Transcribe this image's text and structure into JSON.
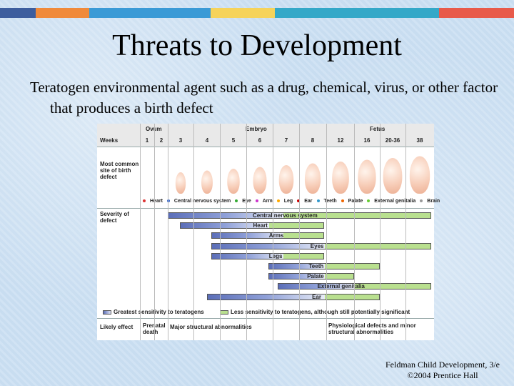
{
  "slide": {
    "title": "Threats to Development",
    "body": "Teratogen environmental agent such as a drug, chemical, virus, or other factor that produces a birth defect",
    "credit_line1": "Feldman Child Development, 3/e",
    "credit_line2": "©2004 Prentice Hall",
    "stripe_colors": [
      "#3d5e9e",
      "#f08a3a",
      "#3a9ad6",
      "#f6d35a",
      "#34a8c8",
      "#e85a4a"
    ]
  },
  "diagram": {
    "periods": [
      "Ovum",
      "Embryo",
      "Fetus"
    ],
    "weeks_label": "Weeks",
    "weeks": [
      "1",
      "2",
      "3",
      "4",
      "5",
      "6",
      "7",
      "8",
      "12",
      "16",
      "20-36",
      "38"
    ],
    "site_label": "Most common site of birth defect",
    "site_legend": [
      {
        "label": "Heart",
        "color": "#d33"
      },
      {
        "label": "Central nervous system",
        "color": "#36c"
      },
      {
        "label": "Eye",
        "color": "#3a3"
      },
      {
        "label": "Arm",
        "color": "#c3c"
      },
      {
        "label": "Leg",
        "color": "#fa0"
      },
      {
        "label": "Ear",
        "color": "#c00"
      },
      {
        "label": "Teeth",
        "color": "#39c"
      },
      {
        "label": "Palate",
        "color": "#e60"
      },
      {
        "label": "External genitalia",
        "color": "#6c3"
      },
      {
        "label": "Brain",
        "color": "#999"
      }
    ],
    "severity_label": "Severity of defect",
    "bars": [
      {
        "label": "Central nervous system",
        "start": 3,
        "dark_end": 7,
        "end": 38
      },
      {
        "label": "Heart",
        "start": 3,
        "dark_end": 6,
        "end": 8
      },
      {
        "label": "Arms",
        "start": 4,
        "dark_end": 7,
        "end": 8
      },
      {
        "label": "Eyes",
        "start": 4,
        "dark_end": 8,
        "end": 38
      },
      {
        "label": "Legs",
        "start": 4,
        "dark_end": 7,
        "end": 8
      },
      {
        "label": "Teeth",
        "start": 6,
        "dark_end": 8,
        "end": 16
      },
      {
        "label": "Palate",
        "start": 6,
        "dark_end": 8,
        "end": 12
      },
      {
        "label": "External genitalia",
        "start": 7,
        "dark_end": 12,
        "end": 38
      },
      {
        "label": "Ear",
        "start": 4,
        "dark_end": 8,
        "end": 16
      }
    ],
    "key_greatest": "Greatest sensitivity to teratogens",
    "key_less": "Less sensitivity to teratogens, although still potentially significant",
    "effect_label": "Likely effect",
    "effect_prenatal": "Prenatal death",
    "effect_major": "Major structural abnormalities",
    "effect_physio": "Physiological defects and minor structural abnormalities"
  }
}
